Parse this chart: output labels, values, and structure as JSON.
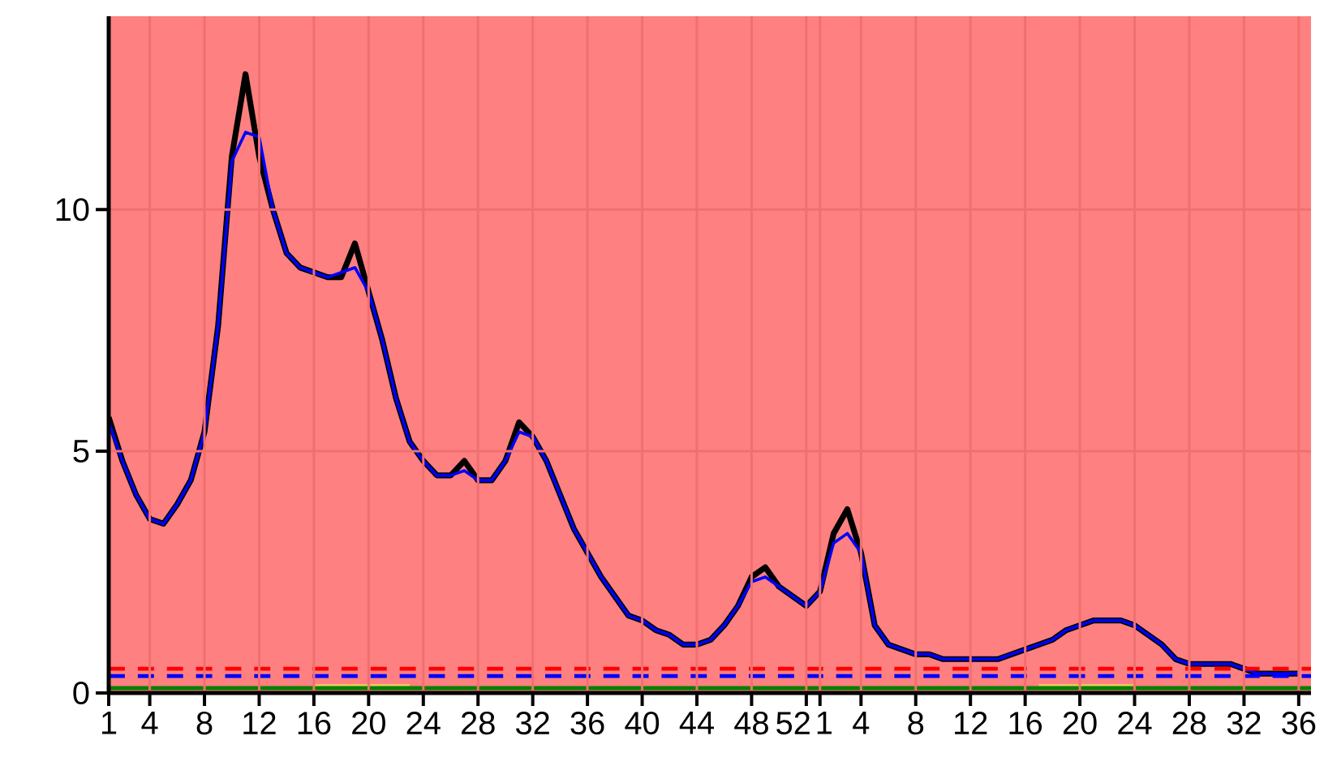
{
  "chart_data": {
    "type": "line",
    "categories": [
      "1",
      null,
      null,
      "4",
      null,
      null,
      null,
      "8",
      null,
      null,
      null,
      "12",
      null,
      null,
      null,
      "16",
      null,
      null,
      null,
      "20",
      null,
      null,
      null,
      "24",
      null,
      null,
      null,
      "28",
      null,
      null,
      null,
      "32",
      null,
      null,
      null,
      "36",
      null,
      null,
      null,
      "40",
      null,
      null,
      null,
      "44",
      null,
      null,
      null,
      "48",
      null,
      null,
      null,
      "52",
      "1",
      null,
      null,
      "4",
      null,
      null,
      null,
      "8",
      null,
      null,
      null,
      "12",
      null,
      null,
      null,
      "16",
      null,
      null,
      null,
      "20",
      null,
      null,
      null,
      "24",
      null,
      null,
      null,
      "28",
      null,
      null,
      null,
      "32",
      null,
      null,
      null,
      "36"
    ],
    "series": [
      {
        "color": "#000000",
        "values": [
          5.7,
          4.8,
          4.1,
          3.6,
          3.5,
          3.9,
          4.4,
          5.4,
          7.6,
          11.1,
          12.8,
          11.1,
          10.0,
          9.1,
          8.8,
          8.7,
          8.6,
          8.6,
          9.3,
          8.3,
          7.3,
          6.1,
          5.2,
          4.8,
          4.5,
          4.5,
          4.8,
          4.4,
          4.4,
          4.8,
          5.6,
          5.3,
          4.8,
          4.1,
          3.4,
          2.9,
          2.4,
          2.0,
          1.6,
          1.5,
          1.3,
          1.2,
          1.0,
          1.0,
          1.1,
          1.4,
          1.8,
          2.4,
          2.6,
          2.2,
          2.0,
          1.8,
          2.1,
          3.3,
          3.8,
          2.9,
          1.4,
          1.0,
          0.9,
          0.8,
          0.8,
          0.7,
          0.7,
          0.7,
          0.7,
          0.7,
          0.8,
          0.9,
          1.0,
          1.1,
          1.3,
          1.4,
          1.5,
          1.5,
          1.5,
          1.4,
          1.2,
          1.0,
          0.7,
          0.6,
          0.6,
          0.6,
          0.6,
          0.5,
          0.4,
          0.4,
          0.4,
          0.4
        ]
      },
      {
        "color": "#0000ff",
        "values": [
          5.6,
          4.8,
          4.1,
          3.6,
          3.5,
          3.9,
          4.4,
          5.4,
          7.6,
          11.0,
          11.6,
          11.5,
          10.0,
          9.1,
          8.8,
          8.7,
          8.6,
          8.7,
          8.8,
          8.3,
          7.3,
          6.1,
          5.2,
          4.8,
          4.5,
          4.5,
          4.6,
          4.4,
          4.4,
          4.8,
          5.4,
          5.3,
          4.8,
          4.1,
          3.4,
          2.9,
          2.4,
          2.0,
          1.6,
          1.5,
          1.3,
          1.2,
          1.0,
          1.0,
          1.1,
          1.4,
          1.8,
          2.3,
          2.4,
          2.2,
          2.0,
          1.8,
          2.1,
          3.1,
          3.3,
          2.9,
          1.4,
          1.0,
          0.9,
          0.8,
          0.8,
          0.7,
          0.7,
          0.7,
          0.7,
          0.7,
          0.8,
          0.9,
          1.0,
          1.1,
          1.3,
          1.4,
          1.5,
          1.5,
          1.5,
          1.4,
          1.2,
          1.0,
          0.7,
          0.6,
          0.6,
          0.6,
          0.6,
          0.5,
          0.4,
          0.4,
          0.4,
          0.4
        ]
      },
      {
        "color": "#f0d060",
        "values": [
          null,
          null,
          null,
          null,
          null,
          null,
          null,
          null,
          null,
          null,
          null,
          null,
          null,
          null,
          null,
          0.15,
          0.15,
          0.15,
          0.15,
          0.15,
          0.15,
          0.15,
          0.15,
          null,
          null,
          null,
          null,
          null,
          null,
          null,
          null,
          null,
          null,
          null,
          null,
          null,
          null,
          null,
          null,
          null,
          null,
          null,
          null,
          null,
          null,
          null,
          null,
          null,
          null,
          null,
          null,
          null,
          null,
          null,
          null,
          null,
          null,
          null,
          null,
          null,
          null,
          null,
          null,
          null,
          null,
          null,
          null,
          null,
          0.15,
          0.15,
          0.15,
          0.15,
          0.15,
          0.15,
          0.15,
          0.15,
          null,
          null,
          null,
          null,
          null,
          null,
          null,
          null,
          null,
          null,
          null,
          null
        ]
      }
    ],
    "ylim": [
      0,
      14
    ],
    "yticks": [
      0,
      5,
      10
    ],
    "grid": true,
    "ref_lines": [
      {
        "axis": "y",
        "value": 0.5,
        "color": "#ff0000",
        "line_style": "dashed"
      },
      {
        "axis": "y",
        "value": 0.35,
        "color": "#0000ff",
        "line_style": "dashed"
      },
      {
        "axis": "y",
        "value": 0.1,
        "color": "#008000",
        "line_style": "solid"
      }
    ],
    "bands": [
      {
        "axis": "y",
        "from": 0,
        "to": 14,
        "color": "#ff8080"
      }
    ]
  }
}
